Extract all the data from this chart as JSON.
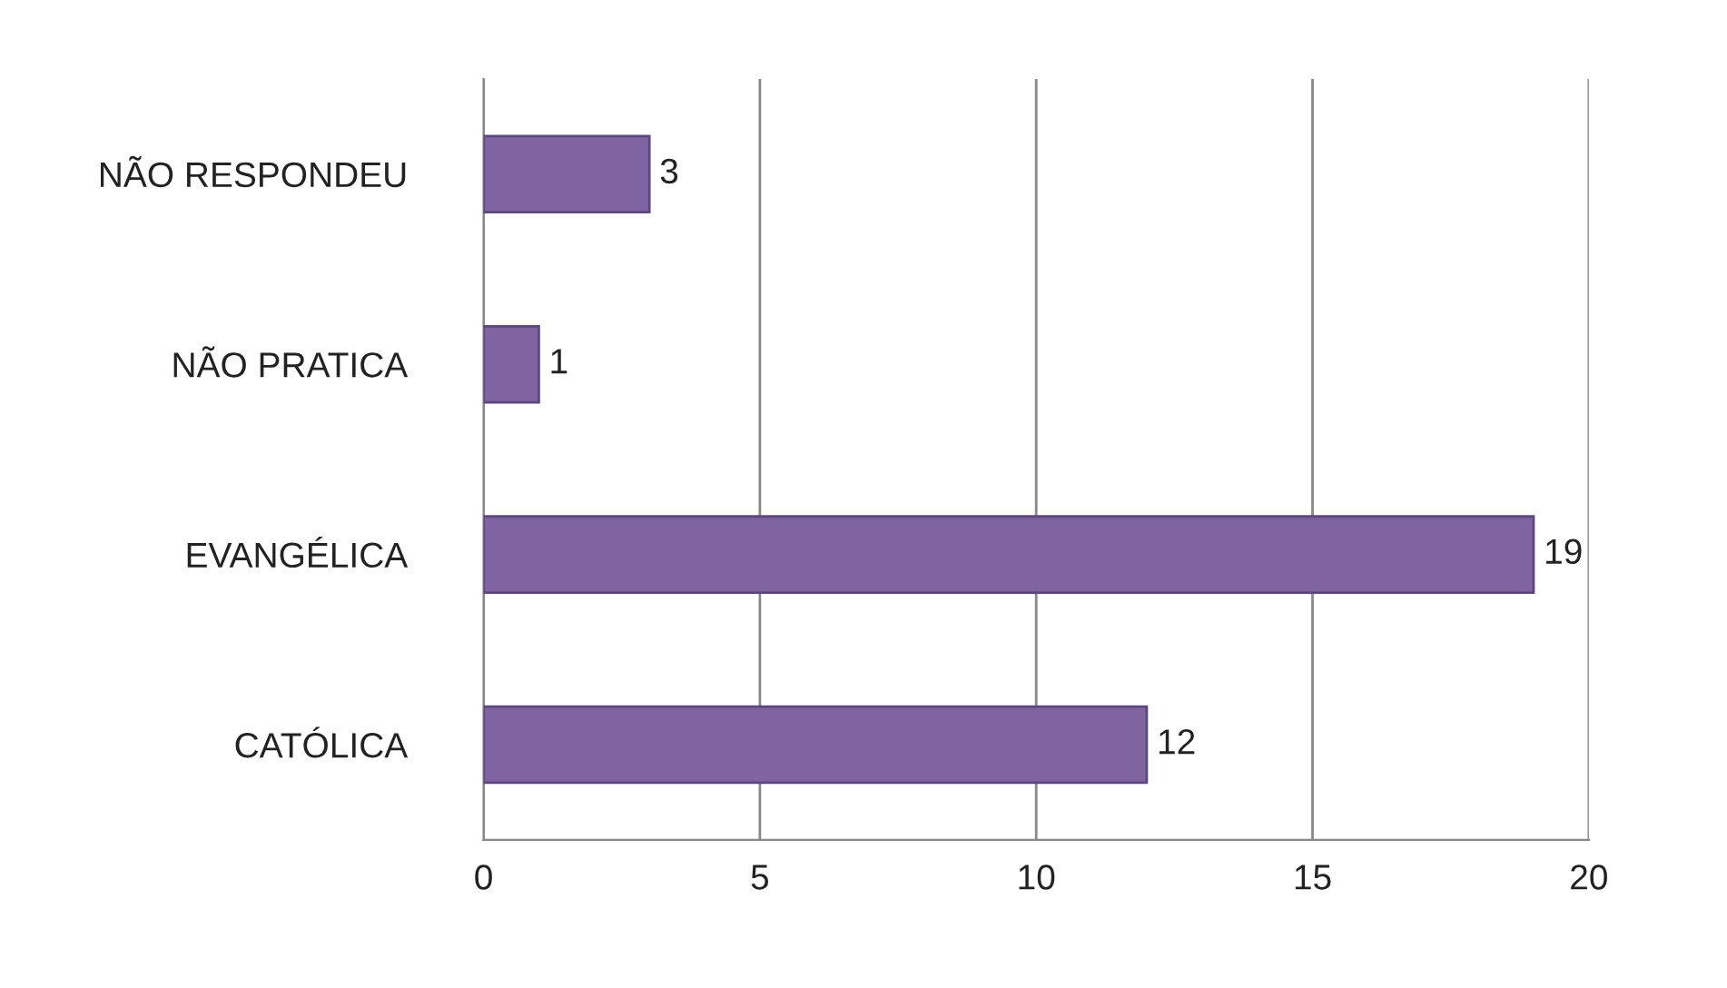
{
  "chart_data": {
    "type": "bar",
    "orientation": "horizontal",
    "categories": [
      "NÃO RESPONDEU",
      "NÃO PRATICA",
      "EVANGÉLICA",
      "CATÓLICA"
    ],
    "values": [
      3,
      1,
      19,
      12
    ],
    "color": "#8064a2",
    "xlim": [
      0,
      20
    ],
    "xticks": [
      0,
      5,
      10,
      15,
      20
    ],
    "grid": "x",
    "data_labels": true
  }
}
